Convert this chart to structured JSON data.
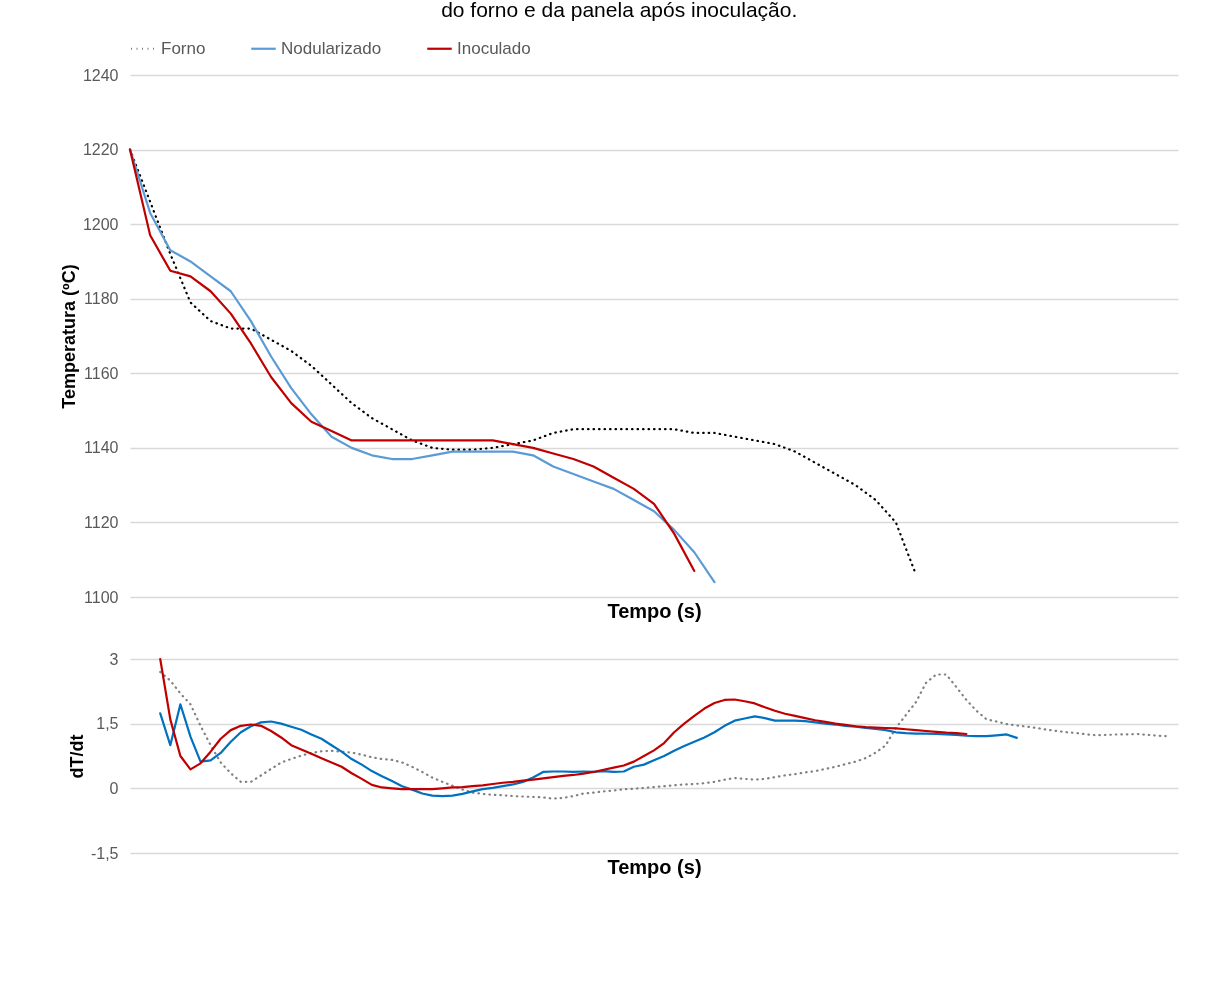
{
  "chart_data": [
    {
      "type": "line",
      "title": "do forno e da panela após inoculação.",
      "xlabel": "Tempo (s)",
      "ylabel": "Temperatura (ºC)",
      "categories": [
        null,
        null,
        null,
        null,
        null,
        null,
        null,
        null,
        null,
        null,
        null,
        null,
        null,
        null,
        null,
        null,
        null,
        null,
        null,
        null,
        null,
        null,
        null,
        null,
        null,
        null,
        null,
        null,
        null,
        null,
        null,
        null,
        null,
        null,
        null,
        null,
        null,
        null,
        null,
        null,
        null,
        null,
        null,
        null,
        null,
        null,
        null,
        null,
        null,
        null,
        null,
        null,
        null
      ],
      "series": [
        {
          "name": "Forno",
          "color": "#000000",
          "line_style": "dotted",
          "values": [
            1220,
            1206,
            1192,
            1179,
            1174,
            1172,
            1172,
            1169,
            1166,
            1162,
            1157,
            1152,
            1148,
            1145,
            1142,
            1140,
            1139.5,
            1139.5,
            1140,
            1141,
            1142,
            1144,
            1145,
            1145,
            1145,
            1145,
            1145,
            1145,
            1144,
            1144,
            1143,
            1142,
            1141,
            1139,
            1136,
            1133,
            1130,
            1126,
            1120,
            1106,
            null,
            null,
            null,
            null,
            null,
            null,
            null,
            null,
            null,
            null,
            null,
            null,
            null
          ]
        },
        {
          "name": "Nodularizado",
          "color": "#5b9bd5",
          "line_style": "solid",
          "values": [
            1220,
            1203,
            1193,
            1190,
            1186,
            1182,
            1174,
            1164.5,
            1156,
            1149,
            1143,
            1140,
            1138,
            1137,
            1137,
            1138,
            1139,
            1139,
            1139,
            1139,
            1138,
            1135,
            1133,
            1131,
            1129,
            1126,
            1123,
            1118,
            1112,
            1104,
            null,
            null,
            null,
            null,
            null,
            null,
            null,
            null,
            null,
            null,
            null,
            null,
            null,
            null,
            null,
            null,
            null,
            null,
            null,
            null,
            null,
            null,
            null
          ]
        },
        {
          "name": "Inoculado",
          "color": "#c00000",
          "line_style": "solid",
          "values": [
            1220,
            1197,
            1187.5,
            1186,
            1182,
            1176,
            1168,
            1159,
            1152,
            1147,
            1144.5,
            1142,
            1142,
            1142,
            1142,
            1142,
            1142,
            1142,
            1142,
            1141,
            1140,
            1138.5,
            1137,
            1135,
            1132,
            1129,
            1125,
            1117,
            1107,
            null,
            null,
            null,
            null,
            null,
            null,
            null,
            null,
            null,
            null,
            null,
            null,
            null,
            null,
            null,
            null,
            null,
            null,
            null,
            null,
            null,
            null,
            null,
            null
          ]
        }
      ],
      "ylim": [
        1100,
        1240
      ],
      "yticks": [
        1100,
        1120,
        1140,
        1160,
        1180,
        1200,
        1220,
        1240
      ],
      "grid": "y",
      "legend": "top",
      "marker": "none",
      "tick_labels": "y"
    },
    {
      "type": "line",
      "xlabel": "Tempo (s)",
      "ylabel": "dT/dt",
      "categories": [
        null,
        null,
        null,
        null,
        null,
        null,
        null,
        null,
        null,
        null,
        null,
        null,
        null,
        null,
        null,
        null,
        null,
        null,
        null,
        null,
        null,
        null,
        null,
        null,
        null,
        null,
        null,
        null,
        null,
        null,
        null,
        null,
        null,
        null,
        null,
        null,
        null,
        null,
        null,
        null,
        null,
        null,
        null,
        null,
        null,
        null,
        null,
        null,
        null,
        null,
        null,
        null,
        null,
        null,
        null,
        null,
        null,
        null,
        null,
        null,
        null,
        null,
        null,
        null,
        null,
        null,
        null,
        null,
        null,
        null,
        null,
        null,
        null,
        null,
        null,
        null,
        null,
        null,
        null,
        null,
        null,
        null,
        null,
        null,
        null,
        null,
        null,
        null,
        null,
        null,
        null,
        null,
        null,
        null,
        null,
        null,
        null,
        null,
        null,
        null,
        null,
        null,
        null,
        null,
        null
      ],
      "series": [
        {
          "color": "#808080",
          "line_style": "dotted",
          "values": [
            null,
            null,
            null,
            2.7,
            2.5,
            2.2,
            1.95,
            1.45,
            1.0,
            0.6,
            0.35,
            0.15,
            0.15,
            0.3,
            0.45,
            0.6,
            0.68,
            0.76,
            0.82,
            0.86,
            0.87,
            0.85,
            0.83,
            0.78,
            0.72,
            0.68,
            0.66,
            0.6,
            0.5,
            0.38,
            0.25,
            0.15,
            0.06,
            -0.03,
            -0.1,
            -0.13,
            -0.15,
            -0.16,
            -0.18,
            -0.19,
            -0.2,
            -0.21,
            -0.24,
            -0.22,
            -0.18,
            -0.12,
            -0.1,
            -0.07,
            -0.05,
            -0.02,
            -0.01,
            0.01,
            0.03,
            0.05,
            0.07,
            0.09,
            0.1,
            0.12,
            0.15,
            0.2,
            0.24,
            0.22,
            0.2,
            0.22,
            0.26,
            0.3,
            0.33,
            0.37,
            0.4,
            0.45,
            0.5,
            0.56,
            0.62,
            0.7,
            0.83,
            1.0,
            1.4,
            1.7,
            2.0,
            2.45,
            2.64,
            2.64,
            2.35,
            2.05,
            1.8,
            1.6,
            1.55,
            1.49,
            1.46,
            1.43,
            1.4,
            1.36,
            1.33,
            1.3,
            1.28,
            1.25,
            1.23,
            1.24,
            1.25,
            1.25,
            1.26,
            1.24,
            1.22,
            1.21,
            null
          ]
        },
        {
          "color": "#0070c0",
          "line_style": "solid",
          "values": [
            null,
            null,
            null,
            1.74,
            1.0,
            1.95,
            1.2,
            0.62,
            0.65,
            0.82,
            1.08,
            1.3,
            1.44,
            1.53,
            1.55,
            1.5,
            1.43,
            1.36,
            1.25,
            1.15,
            1.0,
            0.85,
            0.68,
            0.55,
            0.4,
            0.28,
            0.17,
            0.05,
            -0.03,
            -0.12,
            -0.17,
            -0.18,
            -0.17,
            -0.13,
            -0.07,
            -0.02,
            0.01,
            0.05,
            0.09,
            0.15,
            0.25,
            0.38,
            0.39,
            0.39,
            0.38,
            0.39,
            0.38,
            0.4,
            0.38,
            0.39,
            0.5,
            0.55,
            0.65,
            0.75,
            0.87,
            0.98,
            1.08,
            1.18,
            1.3,
            1.45,
            1.57,
            1.62,
            1.67,
            1.63,
            1.57,
            1.57,
            1.57,
            1.56,
            1.53,
            1.5,
            1.48,
            1.45,
            1.43,
            1.4,
            1.38,
            1.35,
            1.3,
            1.28,
            1.27,
            1.27,
            1.26,
            1.25,
            1.24,
            1.22,
            1.21,
            1.21,
            1.23,
            1.25,
            1.17,
            null,
            null,
            null,
            null,
            null,
            null,
            null,
            null,
            null,
            null,
            null,
            null,
            null,
            null,
            null,
            null
          ]
        },
        {
          "color": "#c00000",
          "line_style": "solid",
          "values": [
            null,
            null,
            null,
            3.0,
            1.6,
            0.75,
            0.44,
            0.58,
            0.85,
            1.15,
            1.35,
            1.45,
            1.48,
            1.45,
            1.33,
            1.18,
            1.0,
            0.9,
            0.8,
            0.7,
            0.6,
            0.5,
            0.35,
            0.22,
            0.08,
            0.02,
            0,
            -0.02,
            -0.02,
            -0.02,
            -0.02,
            0,
            0.02,
            0.03,
            0.05,
            0.07,
            0.1,
            0.13,
            0.15,
            0.18,
            0.2,
            0.23,
            0.26,
            0.29,
            0.31,
            0.34,
            0.38,
            0.43,
            0.48,
            0.53,
            0.62,
            0.75,
            0.88,
            1.05,
            1.3,
            1.5,
            1.68,
            1.85,
            1.98,
            2.05,
            2.06,
            2.02,
            1.97,
            1.88,
            1.8,
            1.73,
            1.68,
            1.63,
            1.58,
            1.54,
            1.5,
            1.47,
            1.44,
            1.42,
            1.41,
            1.4,
            1.39,
            1.37,
            1.35,
            1.33,
            1.31,
            1.29,
            1.28,
            1.26,
            null,
            null,
            null,
            null,
            null,
            null,
            null,
            null,
            null,
            null,
            null,
            null,
            null,
            null,
            null,
            null,
            null,
            null,
            null,
            null,
            null
          ]
        }
      ],
      "ylim": [
        -1.5,
        3
      ],
      "yticks": [
        {
          "value": -1.5,
          "label": "-1,5"
        },
        0,
        {
          "value": 1.5,
          "label": "1,5"
        },
        3
      ],
      "grid": "y",
      "marker": "none",
      "tick_labels": "y"
    }
  ]
}
